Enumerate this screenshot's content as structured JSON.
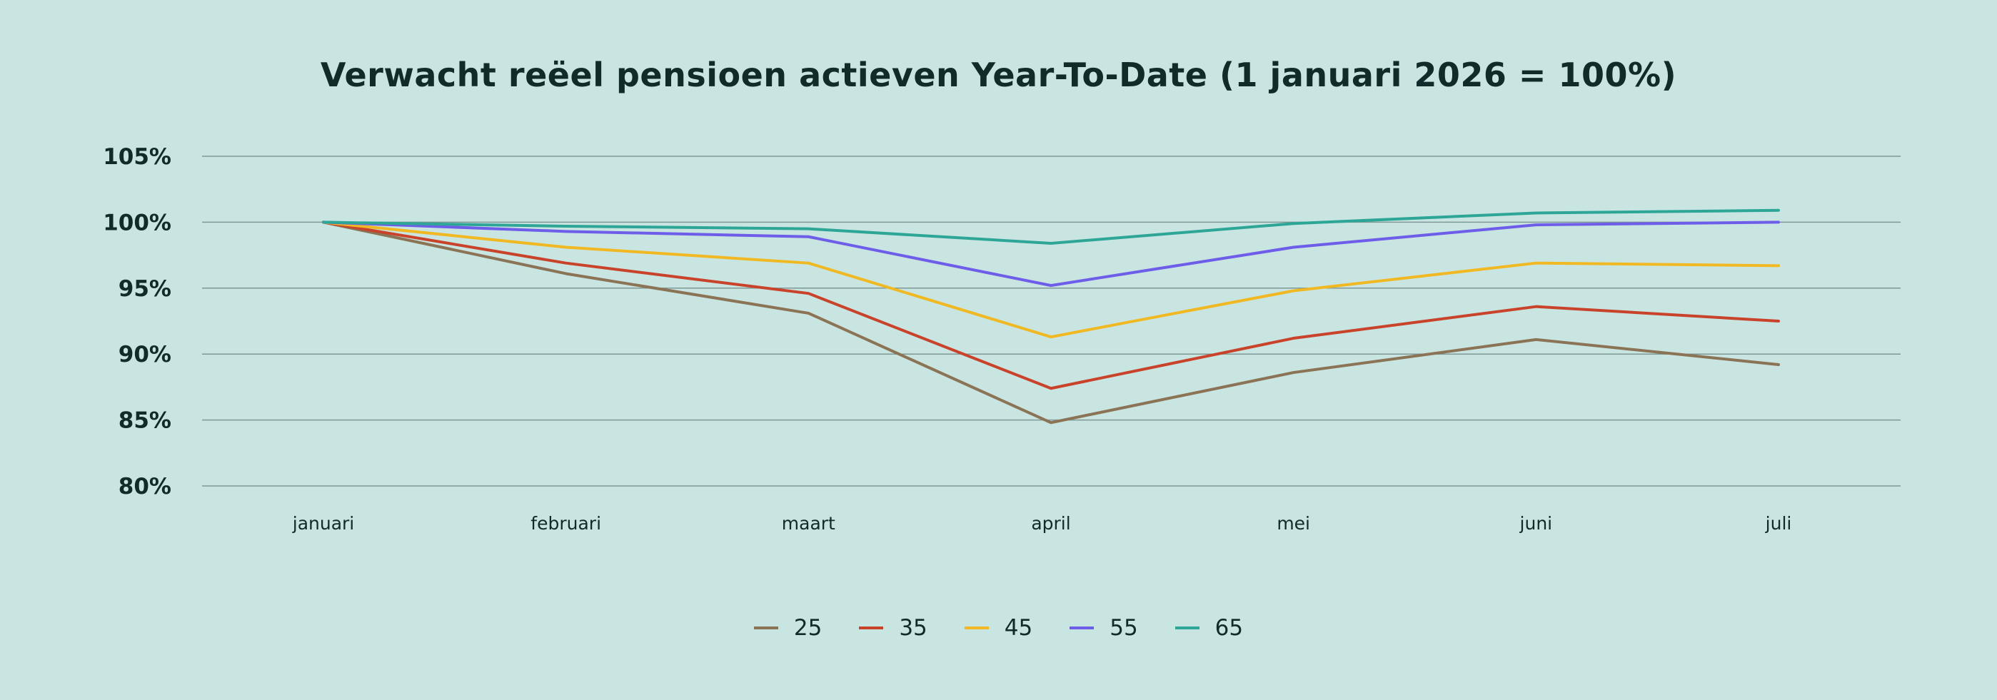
{
  "chart_data": {
    "type": "line",
    "title": "Verwacht reëel pensioen actieven Year-To-Date (1 januari 2026 = 100%)",
    "xlabel": "",
    "ylabel": "",
    "categories": [
      "januari",
      "februari",
      "maart",
      "april",
      "mei",
      "juni",
      "juli"
    ],
    "ylim": [
      80,
      105
    ],
    "yticks": [
      105,
      100,
      95,
      90,
      85,
      80
    ],
    "ytick_labels": [
      "105%",
      "100%",
      "95%",
      "90%",
      "85%",
      "80%"
    ],
    "grid": true,
    "legend_position": "bottom-center",
    "series": [
      {
        "name": "25",
        "color": "#8b7355",
        "values": [
          100,
          96.1,
          93.1,
          84.8,
          88.6,
          91.1,
          89.2
        ]
      },
      {
        "name": "35",
        "color": "#c9432b",
        "values": [
          100,
          96.9,
          94.6,
          87.4,
          91.2,
          93.6,
          92.5
        ]
      },
      {
        "name": "45",
        "color": "#f0b923",
        "values": [
          100,
          98.1,
          96.9,
          91.3,
          94.8,
          96.9,
          96.7
        ]
      },
      {
        "name": "55",
        "color": "#6e5de8",
        "values": [
          100,
          99.3,
          98.9,
          95.2,
          98.1,
          99.8,
          100.0
        ]
      },
      {
        "name": "65",
        "color": "#2ea697",
        "values": [
          100,
          99.7,
          99.5,
          98.4,
          99.9,
          100.7,
          100.9
        ]
      }
    ]
  }
}
